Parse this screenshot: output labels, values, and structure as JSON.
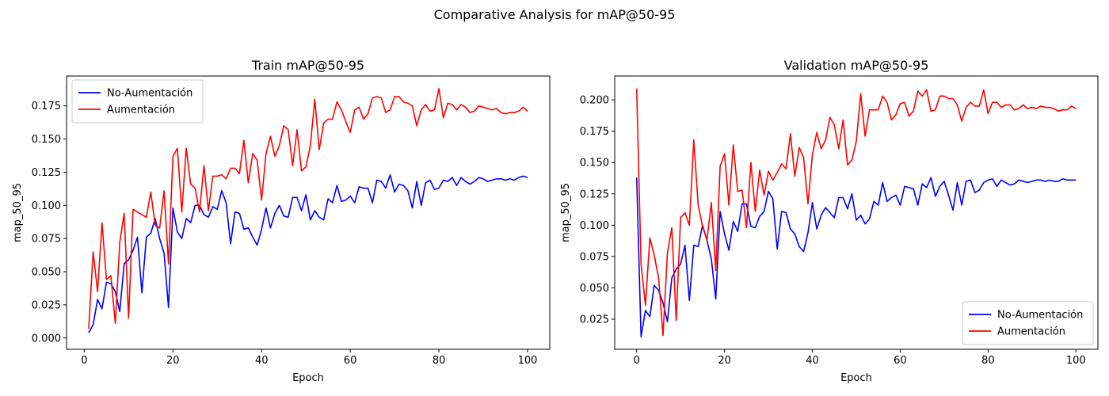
{
  "figure": {
    "suptitle": "Comparative Analysis for mAP@50-95"
  },
  "chart_data": [
    {
      "type": "line",
      "title": "Train mAP@50-95",
      "xlabel": "Epoch",
      "ylabel": "map_50_95",
      "xlim": [
        -4,
        105
      ],
      "ylim": [
        -0.0085,
        0.1975
      ],
      "xticks": [
        0,
        20,
        40,
        60,
        80,
        100
      ],
      "xtick_labels": [
        "0",
        "20",
        "40",
        "60",
        "80",
        "100"
      ],
      "yticks": [
        0.0,
        0.025,
        0.05,
        0.075,
        0.1,
        0.125,
        0.15,
        0.175
      ],
      "ytick_labels": [
        "0.000",
        "0.025",
        "0.050",
        "0.075",
        "0.100",
        "0.125",
        "0.150",
        "0.175"
      ],
      "grid": false,
      "legend_position": "upper-left",
      "x_start": 1,
      "series": [
        {
          "name": "No-Aumentación",
          "color": "#0000ff",
          "values": [
            0.004,
            0.01,
            0.029,
            0.022,
            0.042,
            0.041,
            0.035,
            0.02,
            0.056,
            0.059,
            0.066,
            0.076,
            0.034,
            0.076,
            0.079,
            0.09,
            0.075,
            0.064,
            0.023,
            0.098,
            0.08,
            0.075,
            0.09,
            0.087,
            0.1,
            0.1,
            0.093,
            0.091,
            0.099,
            0.097,
            0.111,
            0.102,
            0.071,
            0.095,
            0.094,
            0.082,
            0.083,
            0.076,
            0.07,
            0.082,
            0.098,
            0.083,
            0.094,
            0.1,
            0.092,
            0.091,
            0.106,
            0.106,
            0.096,
            0.108,
            0.089,
            0.096,
            0.091,
            0.089,
            0.105,
            0.102,
            0.115,
            0.103,
            0.104,
            0.107,
            0.102,
            0.114,
            0.113,
            0.113,
            0.102,
            0.119,
            0.118,
            0.113,
            0.123,
            0.11,
            0.116,
            0.115,
            0.111,
            0.098,
            0.118,
            0.1,
            0.117,
            0.119,
            0.112,
            0.113,
            0.119,
            0.118,
            0.121,
            0.115,
            0.121,
            0.118,
            0.116,
            0.118,
            0.121,
            0.12,
            0.118,
            0.119,
            0.12,
            0.12,
            0.119,
            0.12,
            0.119,
            0.121,
            0.122,
            0.121
          ]
        },
        {
          "name": "Aumentación",
          "color": "#ff0000",
          "values": [
            0.007,
            0.065,
            0.035,
            0.087,
            0.044,
            0.047,
            0.011,
            0.072,
            0.094,
            0.015,
            0.097,
            0.095,
            0.093,
            0.091,
            0.11,
            0.085,
            0.083,
            0.111,
            0.056,
            0.137,
            0.143,
            0.095,
            0.143,
            0.116,
            0.113,
            0.095,
            0.13,
            0.096,
            0.122,
            0.122,
            0.123,
            0.12,
            0.128,
            0.128,
            0.124,
            0.149,
            0.117,
            0.139,
            0.134,
            0.104,
            0.139,
            0.152,
            0.137,
            0.145,
            0.16,
            0.157,
            0.13,
            0.157,
            0.126,
            0.129,
            0.145,
            0.18,
            0.142,
            0.162,
            0.165,
            0.165,
            0.178,
            0.172,
            0.163,
            0.155,
            0.172,
            0.174,
            0.165,
            0.169,
            0.181,
            0.182,
            0.181,
            0.17,
            0.172,
            0.182,
            0.182,
            0.178,
            0.177,
            0.175,
            0.16,
            0.172,
            0.176,
            0.171,
            0.172,
            0.188,
            0.166,
            0.177,
            0.176,
            0.172,
            0.176,
            0.174,
            0.17,
            0.171,
            0.175,
            0.174,
            0.173,
            0.172,
            0.173,
            0.17,
            0.169,
            0.17,
            0.17,
            0.171,
            0.174,
            0.171
          ]
        }
      ]
    },
    {
      "type": "line",
      "title": "Validation mAP@50-95",
      "xlabel": "Epoch",
      "ylabel": "map_50_95",
      "xlim": [
        -5,
        105
      ],
      "ylim": [
        0.001,
        0.219
      ],
      "xticks": [
        0,
        20,
        40,
        60,
        80,
        100
      ],
      "xtick_labels": [
        "0",
        "20",
        "40",
        "60",
        "80",
        "100"
      ],
      "yticks": [
        0.025,
        0.05,
        0.075,
        0.1,
        0.125,
        0.15,
        0.175,
        0.2
      ],
      "ytick_labels": [
        "0.025",
        "0.050",
        "0.075",
        "0.100",
        "0.125",
        "0.150",
        "0.175",
        "0.200"
      ],
      "grid": false,
      "legend_position": "lower-right",
      "x_start": 0,
      "series": [
        {
          "name": "No-Aumentación",
          "color": "#0000ff",
          "values": [
            0.138,
            0.011,
            0.032,
            0.027,
            0.052,
            0.048,
            0.038,
            0.023,
            0.058,
            0.065,
            0.069,
            0.084,
            0.04,
            0.084,
            0.083,
            0.1,
            0.088,
            0.073,
            0.041,
            0.111,
            0.093,
            0.08,
            0.103,
            0.095,
            0.117,
            0.117,
            0.099,
            0.098,
            0.107,
            0.111,
            0.127,
            0.121,
            0.081,
            0.111,
            0.11,
            0.097,
            0.093,
            0.083,
            0.079,
            0.094,
            0.118,
            0.097,
            0.108,
            0.114,
            0.11,
            0.106,
            0.122,
            0.122,
            0.113,
            0.125,
            0.104,
            0.108,
            0.101,
            0.105,
            0.119,
            0.116,
            0.134,
            0.119,
            0.122,
            0.124,
            0.116,
            0.131,
            0.13,
            0.129,
            0.116,
            0.133,
            0.13,
            0.138,
            0.123,
            0.131,
            0.135,
            0.124,
            0.112,
            0.134,
            0.116,
            0.135,
            0.136,
            0.126,
            0.128,
            0.134,
            0.136,
            0.137,
            0.131,
            0.136,
            0.134,
            0.132,
            0.133,
            0.136,
            0.135,
            0.134,
            0.135,
            0.136,
            0.136,
            0.135,
            0.136,
            0.135,
            0.135,
            0.137,
            0.136,
            0.136,
            0.136
          ]
        },
        {
          "name": "Aumentación",
          "color": "#ff0000",
          "values": [
            0.209,
            0.069,
            0.036,
            0.09,
            0.076,
            0.058,
            0.012,
            0.078,
            0.098,
            0.024,
            0.106,
            0.11,
            0.1,
            0.168,
            0.116,
            0.099,
            0.088,
            0.118,
            0.064,
            0.147,
            0.157,
            0.116,
            0.164,
            0.127,
            0.128,
            0.098,
            0.15,
            0.111,
            0.144,
            0.124,
            0.143,
            0.136,
            0.142,
            0.149,
            0.145,
            0.173,
            0.139,
            0.162,
            0.154,
            0.117,
            0.156,
            0.174,
            0.161,
            0.168,
            0.186,
            0.18,
            0.161,
            0.184,
            0.148,
            0.152,
            0.167,
            0.205,
            0.171,
            0.192,
            0.192,
            0.192,
            0.203,
            0.198,
            0.184,
            0.188,
            0.197,
            0.198,
            0.187,
            0.191,
            0.207,
            0.203,
            0.208,
            0.191,
            0.192,
            0.203,
            0.203,
            0.201,
            0.201,
            0.196,
            0.183,
            0.194,
            0.198,
            0.195,
            0.195,
            0.208,
            0.189,
            0.198,
            0.198,
            0.194,
            0.196,
            0.196,
            0.192,
            0.193,
            0.196,
            0.193,
            0.194,
            0.193,
            0.195,
            0.194,
            0.194,
            0.193,
            0.191,
            0.192,
            0.192,
            0.195,
            0.193
          ]
        }
      ]
    }
  ]
}
